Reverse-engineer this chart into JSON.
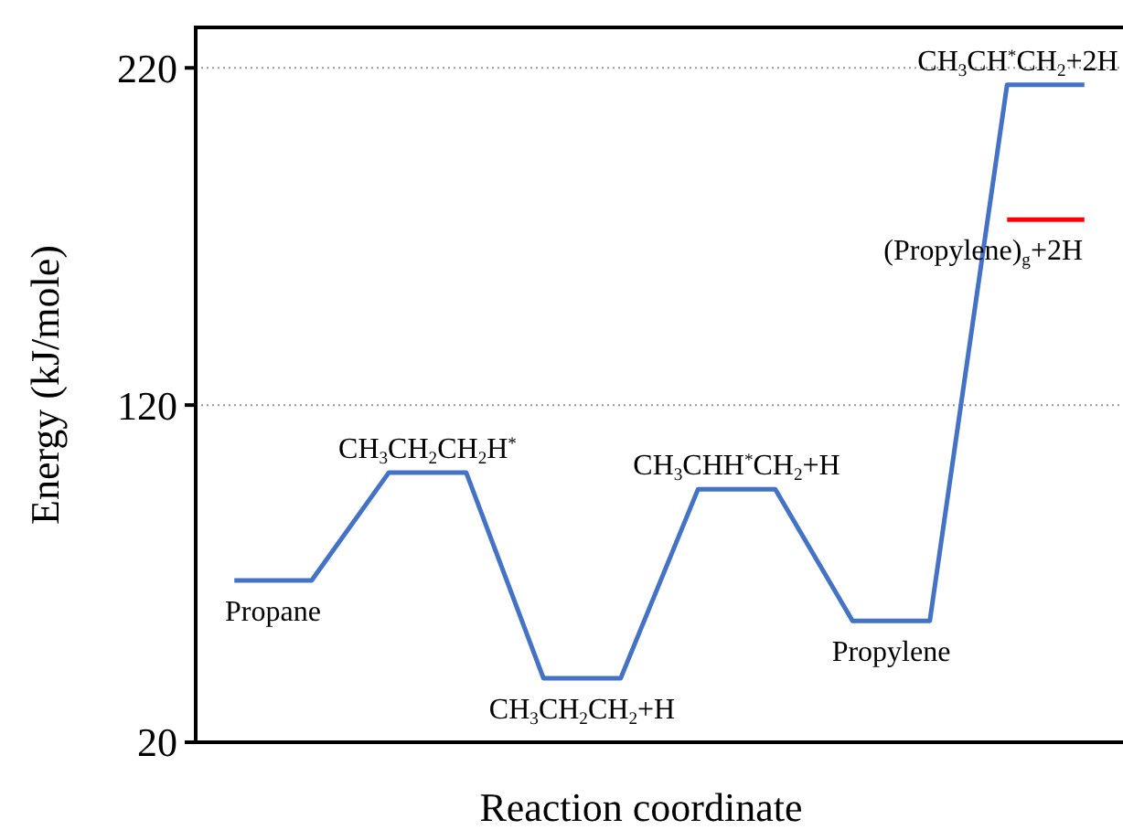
{
  "chart_data": {
    "type": "line",
    "xlabel": "Reaction coordinate",
    "ylabel": "Energy (kJ/mole)",
    "categories": [
      null,
      null,
      null,
      null,
      null,
      null,
      null,
      null,
      null,
      null,
      null,
      null
    ],
    "ylim": [
      20,
      232
    ],
    "yticks": [
      20,
      120,
      220
    ],
    "grid": "y",
    "tick_labels": "y",
    "marker": "none",
    "line_style": "solid",
    "series": [
      {
        "color": "#4472c4",
        "values": [
          68,
          68,
          100,
          100,
          39,
          39,
          95,
          95,
          56,
          56,
          215,
          215
        ]
      },
      {
        "color": "#ff0000",
        "values": [
          null,
          null,
          null,
          null,
          null,
          null,
          null,
          null,
          null,
          null,
          175,
          175
        ]
      }
    ],
    "annotations": [
      {
        "text": "Propane",
        "y": 68
      },
      {
        "text": "CH$_{3}$CH$_{2}$CH$_{2}$H$^{*}$",
        "y": 100
      },
      {
        "text": "CH$_{3}$CH$_{2}$CH$_{2}$+H",
        "y": 39
      },
      {
        "text": "CH$_{3}$CHH$^{*}$CH$_{2}$+H",
        "y": 95
      },
      {
        "text": "Propylene",
        "y": 56
      },
      {
        "text": "CH$_{3}$CH$^{*}$CH$_{2}$+2H",
        "y": 215
      },
      {
        "text": "(Propylene)$_{g}$+2H",
        "y": 175
      }
    ]
  }
}
